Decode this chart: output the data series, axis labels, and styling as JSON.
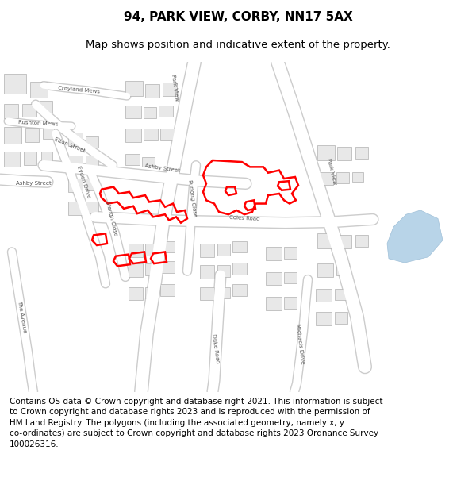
{
  "title_line1": "94, PARK VIEW, CORBY, NN17 5AX",
  "title_line2": "Map shows position and indicative extent of the property.",
  "title_fontsize": 11,
  "subtitle_fontsize": 9.5,
  "footer_text": "Contains OS data © Crown copyright and database right 2021. This information is subject\nto Crown copyright and database rights 2023 and is reproduced with the permission of\nHM Land Registry. The polygons (including the associated geometry, namely x, y\nco-ordinates) are subject to Crown copyright and database rights 2023 Ordnance Survey\n100026316.",
  "footer_fontsize": 7.5,
  "background_color": "#ffffff",
  "building_fc": "#e8e8e8",
  "building_ec": "#b0b0b0",
  "road_color": "#ffffff",
  "road_ec": "#cccccc",
  "highlight_color": "#ff0000",
  "water_color": "#b8d4e8",
  "water_ec": "#a0c0d8"
}
